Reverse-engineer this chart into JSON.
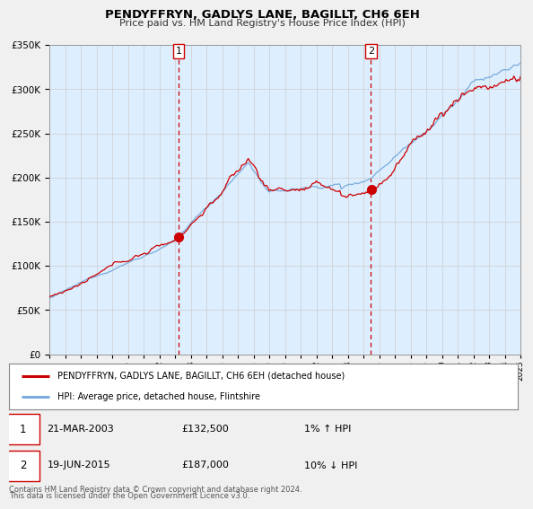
{
  "title": "PENDYFFRYN, GADLYS LANE, BAGILLT, CH6 6EH",
  "subtitle": "Price paid vs. HM Land Registry's House Price Index (HPI)",
  "legend_line1": "PENDYFFRYN, GADLYS LANE, BAGILLT, CH6 6EH (detached house)",
  "legend_line2": "HPI: Average price, detached house, Flintshire",
  "footnote1": "Contains HM Land Registry data © Crown copyright and database right 2024.",
  "footnote2": "This data is licensed under the Open Government Licence v3.0.",
  "transaction1_date": "21-MAR-2003",
  "transaction1_price": "£132,500",
  "transaction1_hpi": "1% ↑ HPI",
  "transaction2_date": "19-JUN-2015",
  "transaction2_price": "£187,000",
  "transaction2_hpi": "10% ↓ HPI",
  "sale1_year": 2003.22,
  "sale1_price": 132500,
  "sale2_year": 2015.47,
  "sale2_price": 187000,
  "red_color": "#cc0000",
  "blue_color": "#7aabdb",
  "bg_color": "#ddeeff",
  "grid_color": "#cccccc",
  "ylim_max": 350000,
  "xlim_start": 1995,
  "xlim_end": 2025,
  "fig_bg": "#f0f0f0"
}
